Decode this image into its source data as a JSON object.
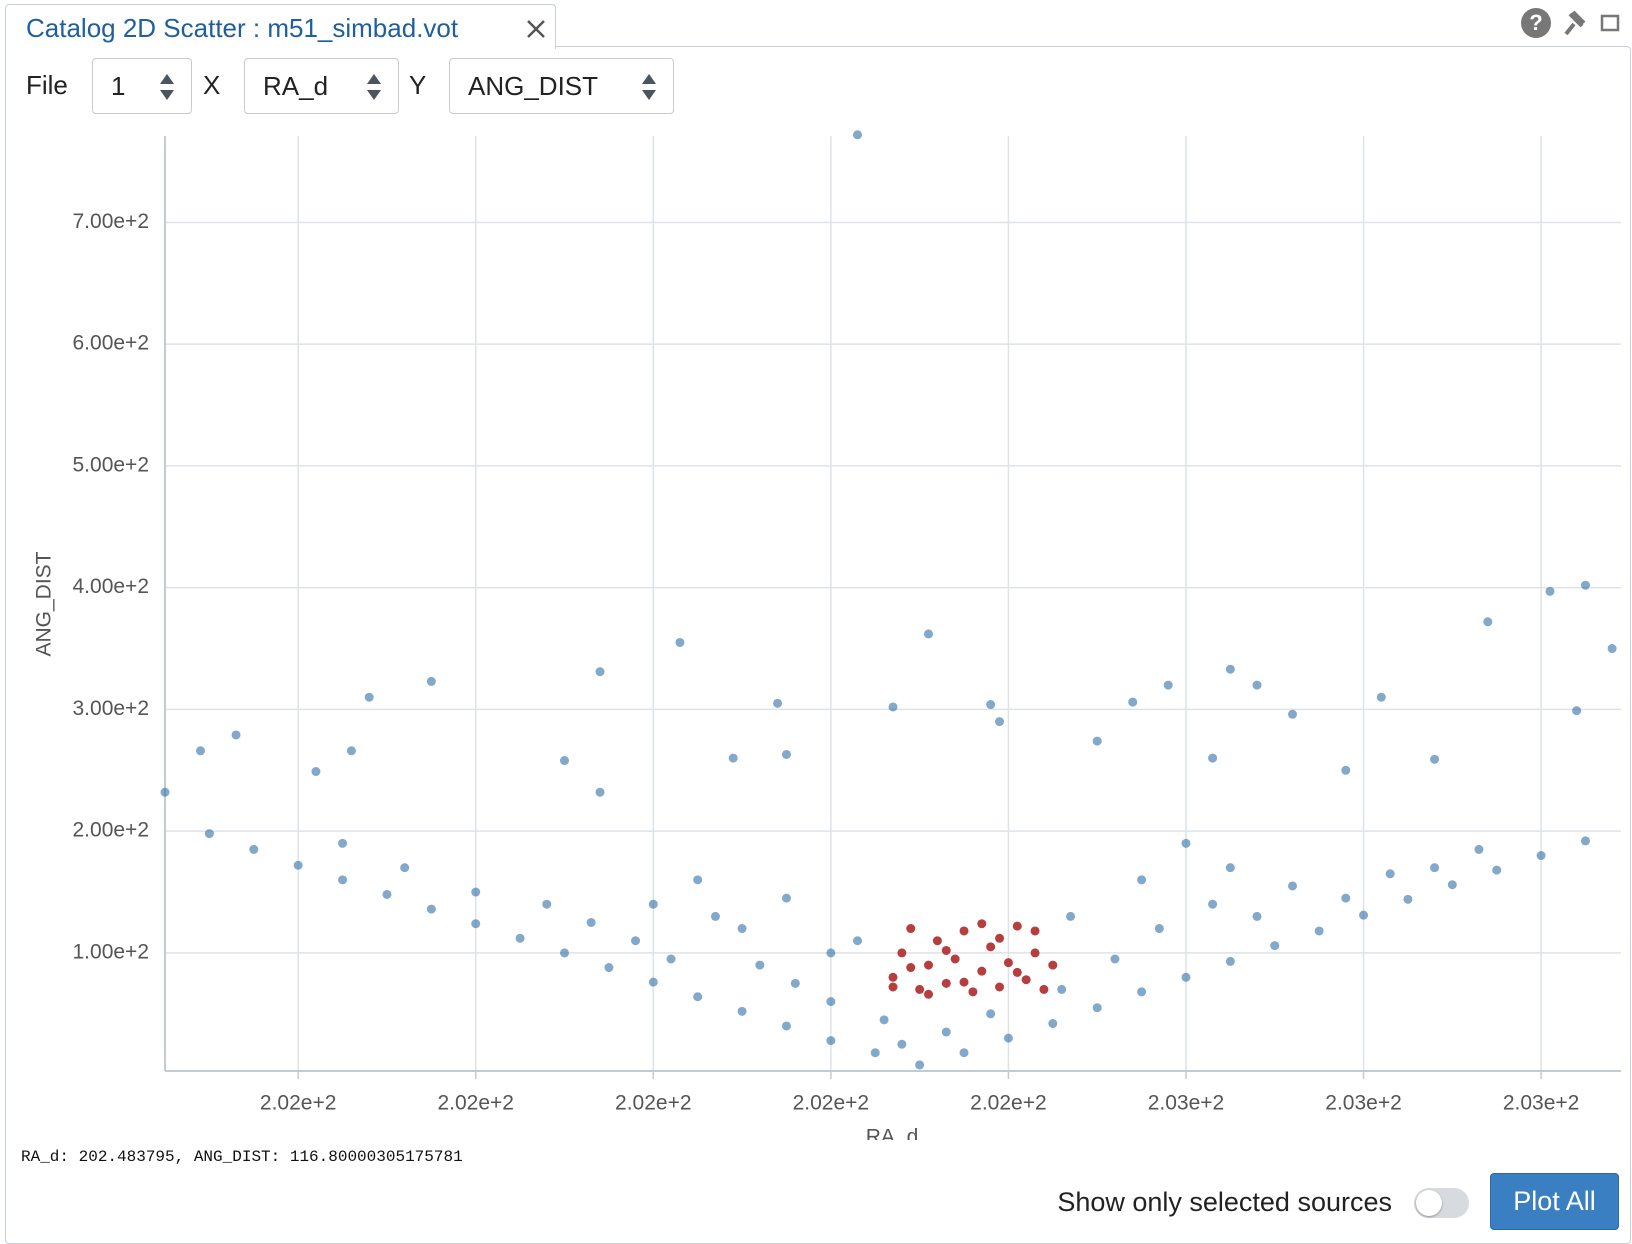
{
  "tab": {
    "title": "Catalog 2D Scatter : m51_simbad.vot"
  },
  "icons": {
    "help": "?"
  },
  "toolbar": {
    "file_label": "File",
    "file_value": "1",
    "x_label": "X",
    "x_value": "RA_d",
    "y_label": "Y",
    "y_value": "ANG_DIST"
  },
  "chart_data": {
    "type": "scatter",
    "x_label": "RA_d",
    "y_label": "ANG_DIST",
    "xlim": [
      202.385,
      202.549
    ],
    "ylim": [
      3,
      771
    ],
    "xticks": [
      {
        "value": 202.4,
        "label": "2.02e+2"
      },
      {
        "value": 202.42,
        "label": "2.02e+2"
      },
      {
        "value": 202.44,
        "label": "2.02e+2"
      },
      {
        "value": 202.46,
        "label": "2.02e+2"
      },
      {
        "value": 202.48,
        "label": "2.02e+2"
      },
      {
        "value": 202.5,
        "label": "2.03e+2"
      },
      {
        "value": 202.52,
        "label": "2.03e+2"
      },
      {
        "value": 202.54,
        "label": "2.03e+2"
      }
    ],
    "yticks": [
      {
        "value": 100,
        "label": "1.00e+2"
      },
      {
        "value": 200,
        "label": "2.00e+2"
      },
      {
        "value": 300,
        "label": "3.00e+2"
      },
      {
        "value": 400,
        "label": "4.00e+2"
      },
      {
        "value": 500,
        "label": "5.00e+2"
      },
      {
        "value": 600,
        "label": "6.00e+2"
      },
      {
        "value": 700,
        "label": "7.00e+2"
      }
    ],
    "grid": true,
    "series": [
      {
        "color": "#2f6ea6",
        "x": [
          202.39,
          202.395,
          202.4,
          202.405,
          202.41,
          202.415,
          202.42,
          202.425,
          202.43,
          202.435,
          202.44,
          202.445,
          202.45,
          202.455,
          202.46,
          202.465,
          202.475,
          202.48,
          202.485,
          202.49,
          202.495,
          202.5,
          202.505,
          202.51,
          202.515,
          202.52,
          202.525,
          202.53,
          202.535,
          202.54,
          202.545,
          202.405,
          202.412,
          202.42,
          202.428,
          202.433,
          202.438,
          202.442,
          202.447,
          202.452,
          202.456,
          202.46,
          202.463,
          202.466,
          202.468,
          202.47,
          202.473,
          202.478,
          202.486,
          202.492,
          202.497,
          202.503,
          202.508,
          202.512,
          202.518,
          202.523,
          202.528,
          202.533,
          202.44,
          202.445,
          202.45,
          202.455,
          202.46,
          202.487,
          202.495,
          202.5,
          202.505,
          202.385,
          202.389,
          202.393,
          202.408,
          202.415,
          202.434,
          202.443,
          202.454,
          202.463,
          202.471,
          202.467,
          202.478,
          202.479,
          202.494,
          202.498,
          202.505,
          202.508,
          202.512,
          202.522,
          202.534,
          202.541,
          202.545,
          202.548,
          202.544,
          202.528,
          202.402,
          202.406,
          202.43,
          202.455,
          202.449,
          202.434,
          202.49,
          202.503,
          202.518
        ],
        "values": [
          198,
          185,
          172,
          160,
          148,
          136,
          124,
          112,
          100,
          88,
          76,
          64,
          52,
          40,
          28,
          18,
          18,
          30,
          42,
          55,
          68,
          80,
          93,
          106,
          118,
          131,
          144,
          156,
          168,
          180,
          192,
          190,
          170,
          150,
          140,
          125,
          110,
          95,
          130,
          90,
          75,
          60,
          110,
          45,
          25,
          8,
          35,
          50,
          70,
          95,
          120,
          140,
          130,
          155,
          145,
          165,
          170,
          185,
          140,
          160,
          120,
          145,
          100,
          130,
          160,
          190,
          170,
          232,
          266,
          279,
          310,
          323,
          331,
          355,
          305,
          772,
          362,
          302,
          304,
          290,
          306,
          320,
          333,
          320,
          296,
          310,
          372,
          397,
          402,
          350,
          299,
          259,
          249,
          266,
          258,
          263,
          260,
          232,
          274,
          260,
          250
        ]
      },
      {
        "color": "#b23434",
        "x": [
          202.467,
          202.468,
          202.469,
          202.47,
          202.471,
          202.472,
          202.473,
          202.474,
          202.475,
          202.476,
          202.477,
          202.478,
          202.479,
          202.48,
          202.481,
          202.482,
          202.483,
          202.484,
          202.469,
          202.473,
          202.477,
          202.481,
          202.475,
          202.479,
          202.471,
          202.483,
          202.467,
          202.485
        ],
        "values": [
          80,
          100,
          120,
          70,
          90,
          110,
          75,
          95,
          118,
          68,
          85,
          105,
          72,
          92,
          122,
          78,
          100,
          70,
          88,
          102,
          124,
          84,
          76,
          112,
          66,
          118,
          72,
          90
        ]
      }
    ]
  },
  "status": {
    "readout": "RA_d: 202.483795, ANG_DIST: 116.80000305175781"
  },
  "footer": {
    "toggle_label": "Show only selected sources",
    "button": "Plot All"
  }
}
